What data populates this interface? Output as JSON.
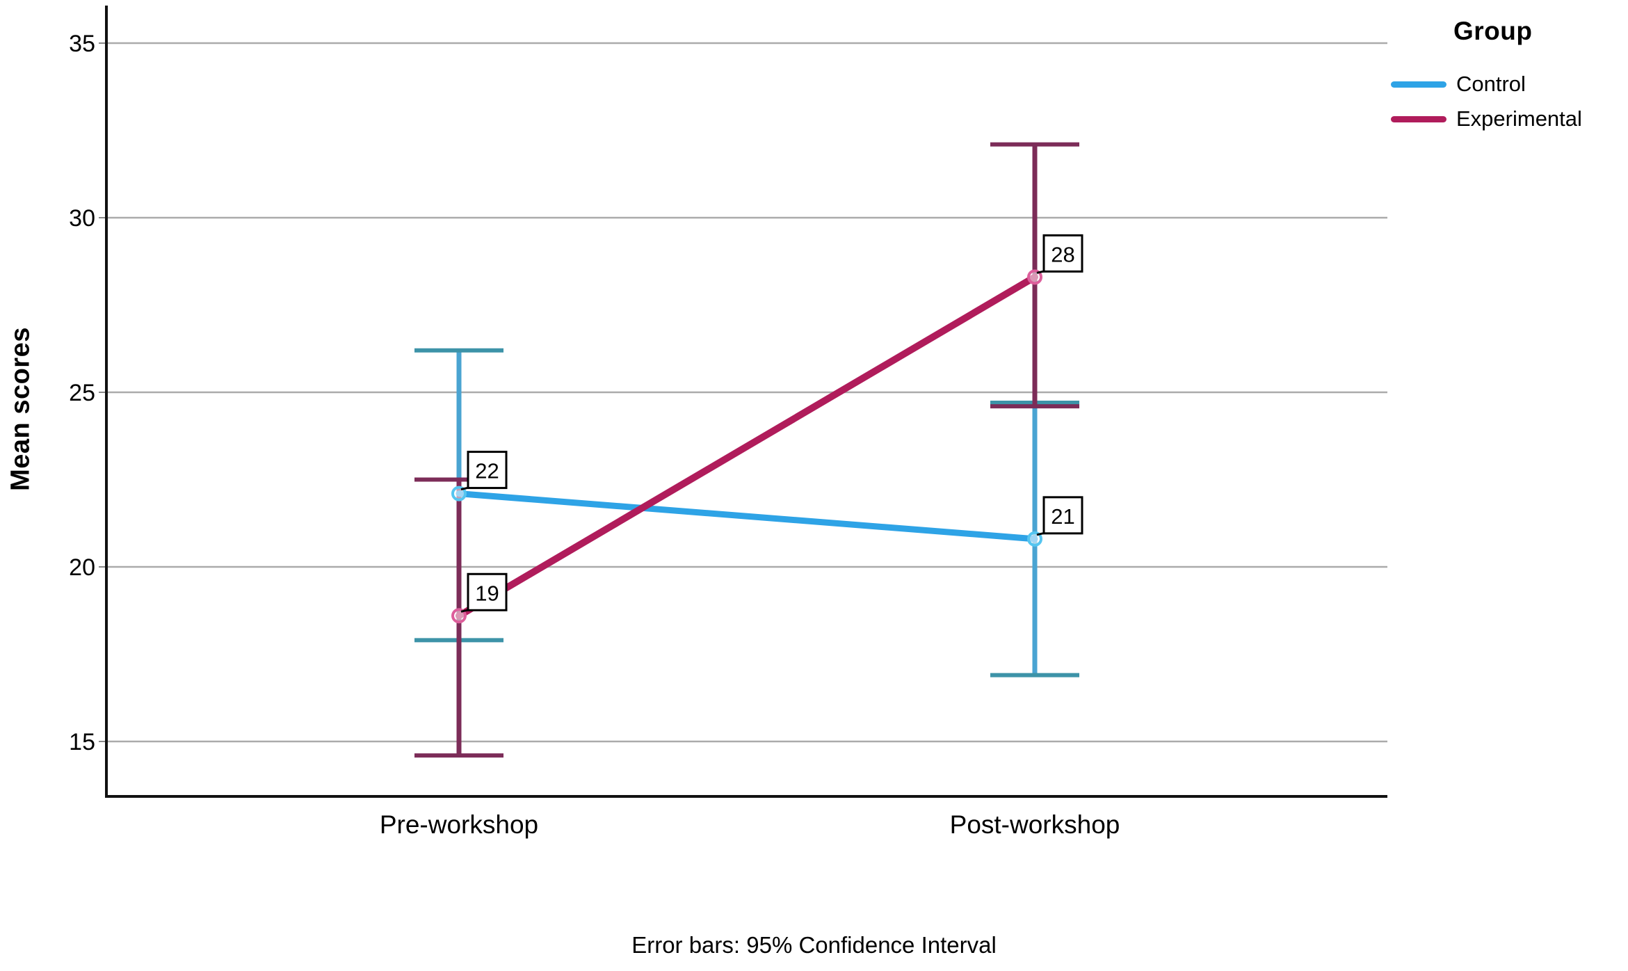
{
  "chart_data": {
    "type": "line",
    "categories": [
      "Pre-workshop",
      "Post-workshop"
    ],
    "series": [
      {
        "name": "Control",
        "values": [
          22.1,
          20.8
        ],
        "point_labels": [
          "22",
          "21"
        ],
        "ci_high": [
          26.2,
          24.7
        ],
        "ci_low": [
          17.9,
          16.9
        ],
        "color": "#2EA3E6",
        "error_color": "#4AA4D2",
        "cap_color": "#3D93A8",
        "marker_color": "#55C5F0"
      },
      {
        "name": "Experimental",
        "values": [
          18.6,
          28.3
        ],
        "point_labels": [
          "19",
          "28"
        ],
        "ci_high": [
          22.5,
          32.1
        ],
        "ci_low": [
          14.6,
          24.6
        ],
        "color": "#B01C5B",
        "error_color": "#7C2C58",
        "cap_color": "#7C2C58",
        "marker_color": "#DD5E9B"
      }
    ],
    "ylabel": "Mean scores",
    "yticks": [
      15,
      20,
      25,
      30,
      35
    ],
    "ylim": [
      13.4,
      36.1
    ],
    "grid": "horizontal",
    "gridline_color": "#ABABAB",
    "axis_color": "#111111",
    "legend_title": "Group",
    "legend_position": "top-right",
    "caption": "Error bars: 95% Confidence Interval"
  }
}
